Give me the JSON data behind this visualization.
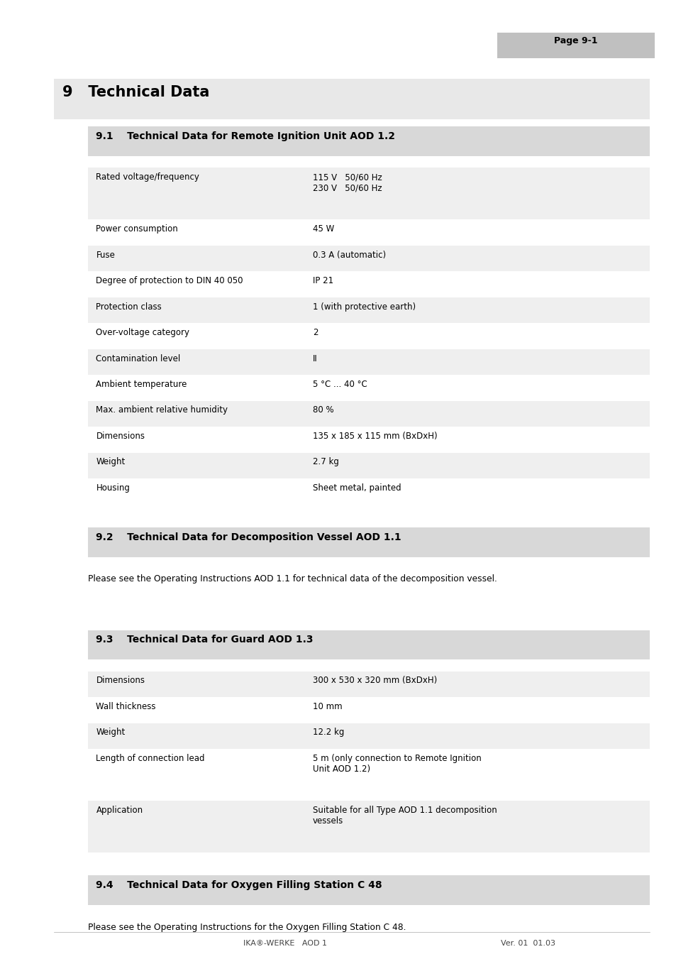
{
  "page_label": "Page 9-1",
  "chapter_title": "9   Technical Data",
  "section1_title": "9.1    Technical Data for Remote Ignition Unit AOD 1.2",
  "section1_rows": [
    [
      "Rated voltage/frequency",
      "115 V   50/60 Hz\n230 V   50/60 Hz"
    ],
    [
      "Power consumption",
      "45 W"
    ],
    [
      "Fuse",
      "0.3 A (automatic)"
    ],
    [
      "Degree of protection to DIN 40 050",
      "IP 21"
    ],
    [
      "Protection class",
      "1 (with protective earth)"
    ],
    [
      "Over-voltage category",
      "2"
    ],
    [
      "Contamination level",
      "II"
    ],
    [
      "Ambient temperature",
      "5 °C ... 40 °C"
    ],
    [
      "Max. ambient relative humidity",
      "80 %"
    ],
    [
      "Dimensions",
      "135 x 185 x 115 mm (BxDxH)"
    ],
    [
      "Weight",
      "2.7 kg"
    ],
    [
      "Housing",
      "Sheet metal, painted"
    ]
  ],
  "section2_title": "9.2    Technical Data for Decomposition Vessel AOD 1.1",
  "section2_text": "Please see the Operating Instructions AOD 1.1 for technical data of the decomposition vessel.",
  "section3_title": "9.3    Technical Data for Guard AOD 1.3",
  "section3_rows": [
    [
      "Dimensions",
      "300 x 530 x 320 mm (BxDxH)"
    ],
    [
      "Wall thickness",
      "10 mm"
    ],
    [
      "Weight",
      "12.2 kg"
    ],
    [
      "Length of connection lead",
      "5 m (only connection to Remote Ignition\nUnit AOD 1.2)"
    ],
    [
      "Application",
      "Suitable for all Type AOD 1.1 decomposition\nvessels"
    ]
  ],
  "section4_title": "9.4    Technical Data for Oxygen Filling Station C 48",
  "section4_text": "Please see the Operating Instructions for the Oxygen Filling Station C 48.",
  "footer_left": "IKA®-WERKE   AOD 1",
  "footer_right": "Ver. 01  01.03",
  "bg_color": "#ffffff",
  "header_bg": "#c0c0c0",
  "section_header_bg": "#d8d8d8",
  "chapter_bg": "#e8e8e8",
  "row_alt_bg": "#efefef",
  "row_white_bg": "#ffffff",
  "text_color": "#000000"
}
